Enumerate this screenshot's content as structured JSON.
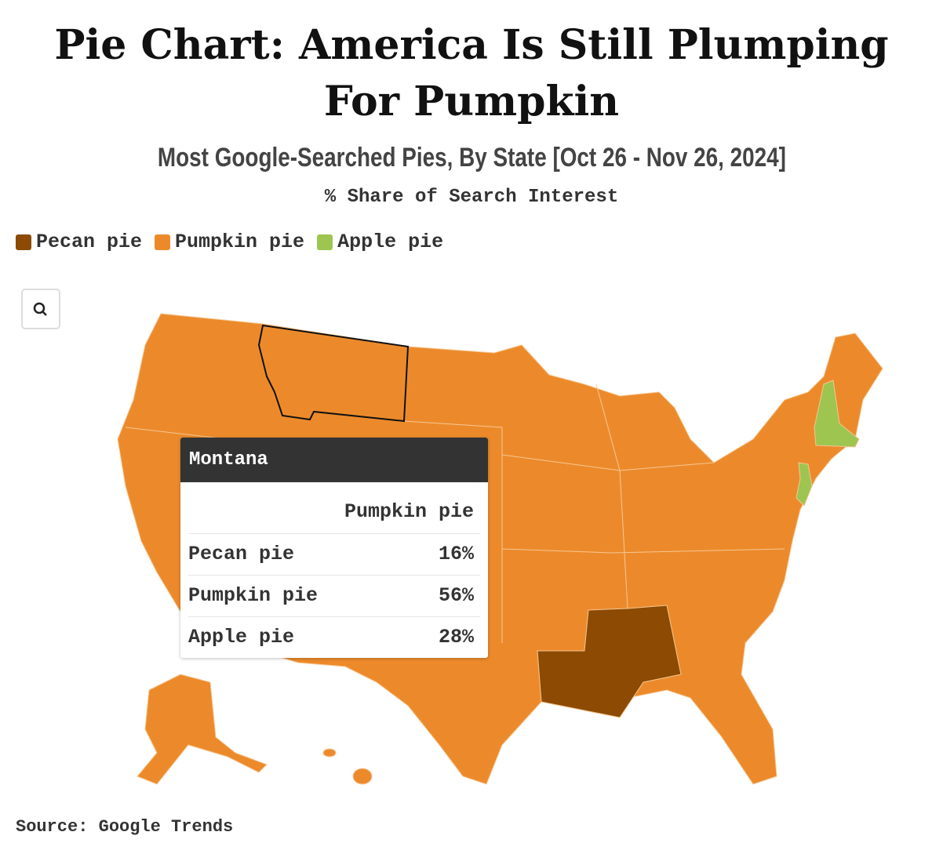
{
  "header": {
    "title": "Pie Chart: America Is Still Plumping For Pumpkin",
    "subtitle": "Most Google-Searched Pies, By State [Oct 26 - Nov 26, 2024]",
    "unit_note": "% Share of Search Interest"
  },
  "legend": [
    {
      "name": "Pecan pie",
      "color": "#8c4a02"
    },
    {
      "name": "Pumpkin pie",
      "color": "#ec8a2b"
    },
    {
      "name": "Apple pie",
      "color": "#9dc550"
    }
  ],
  "tooltip": {
    "state": "Montana",
    "column_header": "Pumpkin pie",
    "rows": [
      {
        "label": "Pecan pie",
        "value": "16%"
      },
      {
        "label": "Pumpkin pie",
        "value": "56%"
      },
      {
        "label": "Apple pie",
        "value": "28%"
      }
    ]
  },
  "source": "Source: Google Trends"
}
